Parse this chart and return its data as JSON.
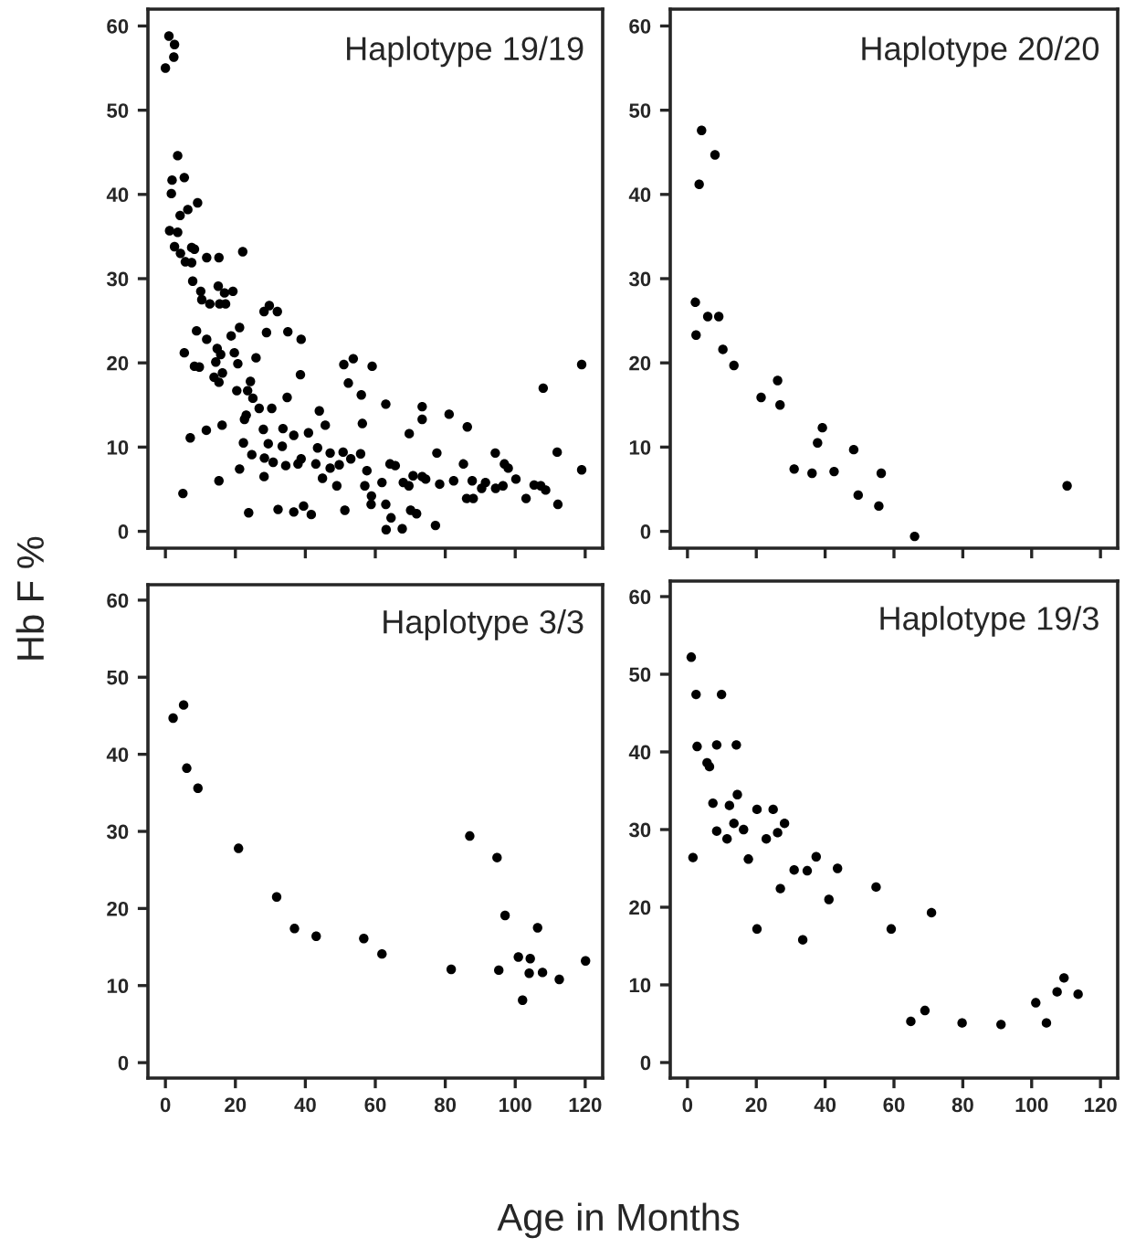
{
  "chart_data": [
    {
      "type": "scatter",
      "title": "Haplotype 19/19",
      "ylabel": "Hb F %",
      "xlabel": "Age in Months",
      "xlim": [
        -5,
        125
      ],
      "ylim": [
        -2,
        62
      ],
      "xticks": [
        {
          "value": 0,
          "label": null
        },
        {
          "value": 20,
          "label": null
        },
        {
          "value": 40,
          "label": null
        },
        {
          "value": 60,
          "label": null
        },
        {
          "value": 80,
          "label": null
        },
        {
          "value": 100,
          "label": null
        },
        {
          "value": 120,
          "label": null
        }
      ],
      "yticks": [
        0,
        10,
        20,
        30,
        40,
        50,
        60
      ],
      "tick_labels": "y",
      "marker": "circle",
      "series": [
        {
          "color": "#000000",
          "x": [
            0,
            1,
            2.6,
            2.4,
            3.5,
            1.9,
            5.4,
            1.7,
            4.2,
            6.4,
            9.2,
            1.2,
            3.5,
            2.6,
            4.3,
            5.7,
            7.5,
            8.3,
            11.8,
            15.3,
            22.1,
            7.5,
            7.8,
            10.1,
            10.4,
            12.7,
            15.5,
            17.2,
            15.1,
            16.9,
            19.3,
            8.9,
            11.8,
            5.4,
            8.3,
            9.7,
            14.8,
            15.8,
            14.4,
            13.9,
            15.3,
            16.3,
            18.8,
            21.2,
            19.7,
            20.7,
            28.2,
            29.7,
            32,
            28.9,
            35,
            38.8,
            25.9,
            20.4,
            23.5,
            24.3,
            25,
            38.6,
            7.1,
            11.7,
            16.2,
            15.3,
            5,
            22.6,
            23.1,
            26.8,
            30.4,
            34.8,
            22.3,
            28,
            29.4,
            33.6,
            33.4,
            36.7,
            40.9,
            24.7,
            28.3,
            30.8,
            34.4,
            37.9,
            38.8,
            21.2,
            28.2,
            23.8,
            32.2,
            36.7,
            39.5,
            41.7,
            43,
            44,
            45.7,
            43.5,
            47.1,
            47.1,
            49.7,
            44.9,
            49,
            51.3,
            50.8,
            53,
            55.8,
            51,
            53.7,
            52.3,
            59.1,
            56,
            56.3,
            57.6,
            57,
            58.9,
            58.8,
            61.9,
            63,
            63,
            64.5,
            63.1,
            67.7,
            64.2,
            65.7,
            69.7,
            73.4,
            73.4,
            68,
            69.6,
            70.8,
            73.4,
            74.4,
            70.1,
            71.8,
            77.2,
            77.6,
            78.4,
            81.1,
            82.4,
            85.2,
            86.3,
            86.1,
            88,
            87.7,
            90.4,
            91.5,
            94.4,
            96.5,
            94.3,
            96.9,
            98,
            100.2,
            103.1,
            105.4,
            107.3,
            108.7,
            108,
            112.2,
            112,
            119,
            119
          ],
          "values": [
            55,
            58.8,
            57.8,
            56.3,
            44.6,
            41.7,
            42,
            40.1,
            37.5,
            38.2,
            39,
            35.7,
            35.5,
            33.8,
            33,
            32,
            33.7,
            33.5,
            32.5,
            32.5,
            33.2,
            31.9,
            29.7,
            28.5,
            27.5,
            27,
            27,
            27,
            29.1,
            28.3,
            28.5,
            23.8,
            22.8,
            21.2,
            19.6,
            19.5,
            21.7,
            21,
            20.1,
            18.3,
            17.7,
            18.8,
            23.2,
            24.2,
            21.2,
            19.9,
            26.1,
            26.8,
            26.1,
            23.6,
            23.7,
            22.8,
            20.6,
            16.7,
            16.7,
            17.8,
            15.8,
            18.6,
            11.1,
            12,
            12.6,
            6,
            4.5,
            13.3,
            13.8,
            14.6,
            14.6,
            15.9,
            10.5,
            12.1,
            10.4,
            12.2,
            10.1,
            11.4,
            11.7,
            9.1,
            8.7,
            8.2,
            7.8,
            8,
            8.6,
            7.4,
            6.5,
            2.2,
            2.6,
            2.3,
            3,
            2,
            8,
            14.3,
            12.6,
            9.9,
            9.3,
            7.5,
            7.9,
            6.3,
            5.4,
            2.5,
            9.4,
            8.6,
            9.2,
            19.8,
            20.5,
            17.6,
            19.6,
            16.2,
            12.8,
            7.2,
            5.4,
            4.2,
            3.2,
            5.8,
            15.1,
            3.2,
            1.6,
            0.2,
            0.3,
            8,
            7.8,
            11.6,
            14.8,
            13.3,
            5.8,
            5.4,
            6.6,
            6.5,
            6.2,
            2.5,
            2.1,
            0.7,
            9.3,
            5.6,
            13.9,
            6,
            8,
            12.4,
            3.9,
            3.9,
            6,
            5.1,
            5.8,
            5.1,
            5.4,
            9.3,
            8,
            7.5,
            6.2,
            3.9,
            5.5,
            5.4,
            4.9,
            17,
            3.2,
            9.4,
            19.8,
            7.3
          ]
        }
      ]
    },
    {
      "type": "scatter",
      "title": "Haplotype 20/20",
      "xlim": [
        -5,
        125
      ],
      "ylim": [
        -2,
        62
      ],
      "xticks": [
        {
          "value": 0,
          "label": null
        },
        {
          "value": 20,
          "label": null
        },
        {
          "value": 40,
          "label": null
        },
        {
          "value": 60,
          "label": null
        },
        {
          "value": 80,
          "label": null
        },
        {
          "value": 100,
          "label": null
        },
        {
          "value": 120,
          "label": null
        }
      ],
      "yticks": [
        0,
        10,
        20,
        30,
        40,
        50,
        60
      ],
      "tick_labels": "y",
      "marker": "circle",
      "series": [
        {
          "color": "#000000",
          "x": [
            4.1,
            3.4,
            8,
            2.3,
            2.5,
            5.9,
            9.1,
            10.3,
            13.5,
            21.4,
            26.2,
            26.9,
            31,
            36.2,
            37.8,
            39.2,
            42.6,
            48.3,
            49.6,
            55.6,
            56.3,
            66,
            110.3
          ],
          "values": [
            47.6,
            41.2,
            44.7,
            27.2,
            23.3,
            25.5,
            25.5,
            21.6,
            19.7,
            15.9,
            17.9,
            15,
            7.4,
            6.9,
            10.5,
            12.3,
            7.1,
            9.7,
            4.3,
            3,
            6.9,
            -0.6,
            5.4
          ]
        }
      ]
    },
    {
      "type": "scatter",
      "title": "Haplotype 3/3",
      "xlim": [
        -5,
        125
      ],
      "ylim": [
        -2,
        62
      ],
      "xticks": [
        0,
        20,
        40,
        60,
        80,
        100,
        120
      ],
      "yticks": [
        0,
        10,
        20,
        30,
        40,
        50,
        60
      ],
      "marker": "circle",
      "series": [
        {
          "color": "#000000",
          "x": [
            2.2,
            5.2,
            6.1,
            9.3,
            20.9,
            31.8,
            36.9,
            43.1,
            56.7,
            61.9,
            81.7,
            87,
            94.8,
            95.3,
            97.1,
            100.9,
            104.3,
            104,
            102.1,
            106.4,
            107.8,
            112.6,
            120.1
          ],
          "values": [
            44.7,
            46.4,
            38.2,
            35.6,
            27.8,
            21.5,
            17.4,
            16.4,
            16.1,
            14.1,
            12.1,
            29.4,
            26.6,
            12,
            19.1,
            13.7,
            13.5,
            11.6,
            8.1,
            17.5,
            11.7,
            10.8,
            13.2
          ]
        }
      ]
    },
    {
      "type": "scatter",
      "title": "Haplotype 19/3",
      "xlim": [
        -5,
        125
      ],
      "ylim": [
        -2,
        62
      ],
      "xticks": [
        0,
        20,
        40,
        60,
        80,
        100,
        120
      ],
      "yticks": [
        0,
        10,
        20,
        30,
        40,
        50,
        60
      ],
      "marker": "circle",
      "series": [
        {
          "color": "#000000",
          "x": [
            1.1,
            2.5,
            2.8,
            1.6,
            5.7,
            6.4,
            7.4,
            8.5,
            9.9,
            8.5,
            11.5,
            12.2,
            13.5,
            14.2,
            14.5,
            16.3,
            17.7,
            20.2,
            20.2,
            22.9,
            24.9,
            26.2,
            28.2,
            27,
            31,
            33.5,
            34.8,
            37.4,
            41.1,
            43.6,
            54.8,
            59.2,
            70.9,
            64.9,
            69,
            79.8,
            91.1,
            101.2,
            104.3,
            107.4,
            109.4,
            113.5
          ],
          "values": [
            52.2,
            47.4,
            40.7,
            26.4,
            38.6,
            38.1,
            33.4,
            40.9,
            47.4,
            29.8,
            28.8,
            33.1,
            30.8,
            40.9,
            34.5,
            30,
            26.2,
            32.6,
            17.2,
            28.8,
            32.6,
            29.6,
            30.8,
            22.4,
            24.8,
            15.8,
            24.7,
            26.5,
            21,
            25,
            22.6,
            17.2,
            19.3,
            5.3,
            6.7,
            5.1,
            4.9,
            7.7,
            5.1,
            9.1,
            10.9,
            8.8
          ]
        }
      ]
    }
  ]
}
